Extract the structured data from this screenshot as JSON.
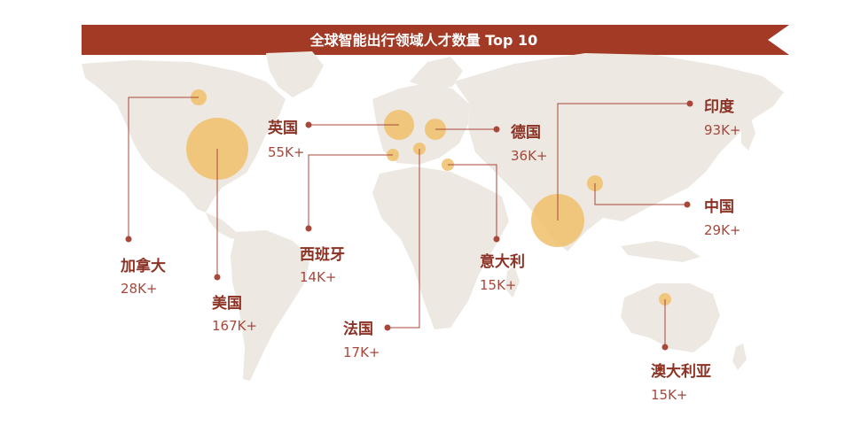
{
  "title": "全球智能出行领域人才数量 Top 10",
  "colors": {
    "banner": "#a23a25",
    "land": "#ede8e1",
    "bubble": "#f0bf6b",
    "leader": "#a8473a",
    "label": "#8b3224"
  },
  "countries": [
    {
      "id": "canada",
      "name": "加拿大",
      "value": "28K+",
      "talent_k": 28
    },
    {
      "id": "usa",
      "name": "美国",
      "value": "167K+",
      "talent_k": 167
    },
    {
      "id": "uk",
      "name": "英国",
      "value": "55K+",
      "talent_k": 55
    },
    {
      "id": "spain",
      "name": "西班牙",
      "value": "14K+",
      "talent_k": 14
    },
    {
      "id": "france",
      "name": "法国",
      "value": "17K+",
      "talent_k": 17
    },
    {
      "id": "germany",
      "name": "德国",
      "value": "36K+",
      "talent_k": 36
    },
    {
      "id": "italy",
      "name": "意大利",
      "value": "15K+",
      "talent_k": 15
    },
    {
      "id": "india",
      "name": "印度",
      "value": "93K+",
      "talent_k": 93
    },
    {
      "id": "china",
      "name": "中国",
      "value": "29K+",
      "talent_k": 29
    },
    {
      "id": "australia",
      "name": "澳大利亚",
      "value": "15K+",
      "talent_k": 15
    }
  ]
}
